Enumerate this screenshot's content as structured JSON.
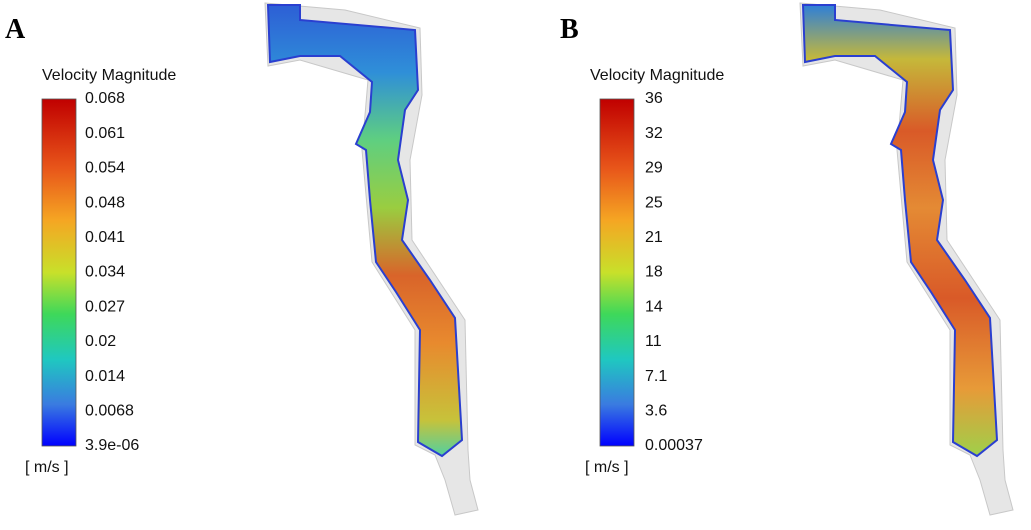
{
  "panels": [
    {
      "label": "A",
      "legend_title": "Velocity Magnitude",
      "unit": "[ m/s ]",
      "ticks": [
        "0.068",
        "0.061",
        "0.054",
        "0.048",
        "0.041",
        "0.034",
        "0.027",
        "0.02",
        "0.014",
        "0.0068",
        "3.9e-06"
      ]
    },
    {
      "label": "B",
      "legend_title": "Velocity Magnitude",
      "unit": "[ m/s ]",
      "ticks": [
        "36",
        "32",
        "29",
        "25",
        "21",
        "18",
        "14",
        "11",
        "7.1",
        "3.6",
        "0.00037"
      ]
    }
  ]
}
